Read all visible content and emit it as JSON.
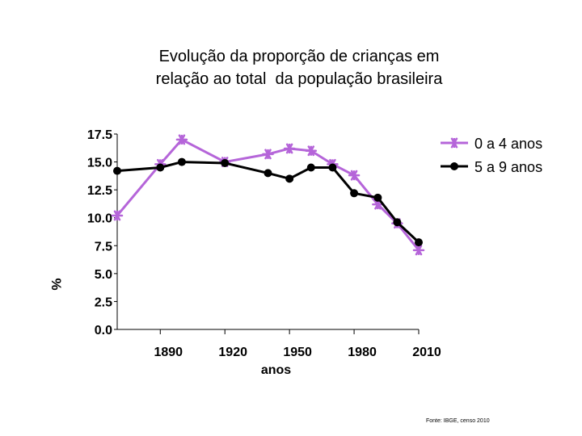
{
  "title_line1": "Evolução da proporção de crianças em",
  "title_line2": "relação ao total  da população brasileira",
  "source": "Fonte: IBGE, censo 2010",
  "chart_data": {
    "type": "line",
    "title": "Evolução da proporção de crianças em relação ao total  da população brasileira",
    "xlabel": "anos",
    "ylabel": "%",
    "ylim": [
      0,
      17.5
    ],
    "yticks": [
      0,
      2.5,
      5,
      7.5,
      10,
      12.5,
      15,
      17.5
    ],
    "ytick_labels": [
      "0.0",
      "2.5",
      "5.0",
      "7.5",
      "10.0",
      "12.5",
      "15.0",
      "17.5"
    ],
    "xlim": [
      1870,
      2010
    ],
    "xticks": [
      1890,
      1920,
      1950,
      1980,
      2010
    ],
    "xtick_labels": [
      "1890",
      "1920",
      "1950",
      "1980",
      "2010"
    ],
    "legend_position": "top-right",
    "series": [
      {
        "name": "0 a 4 anos",
        "color": "#b565d9",
        "marker": "asterisk",
        "x": [
          1870,
          1890,
          1900,
          1920,
          1940,
          1950,
          1960,
          1970,
          1980,
          1991,
          2000,
          2010
        ],
        "y": [
          10.2,
          14.8,
          17.0,
          15.0,
          15.7,
          16.2,
          16.0,
          14.8,
          13.8,
          11.2,
          9.5,
          7.1
        ]
      },
      {
        "name": "5 a 9 anos",
        "color": "#000000",
        "marker": "circle",
        "x": [
          1870,
          1890,
          1900,
          1920,
          1940,
          1950,
          1960,
          1970,
          1980,
          1991,
          2000,
          2010
        ],
        "y": [
          14.2,
          14.5,
          15.0,
          14.9,
          14.0,
          13.5,
          14.5,
          14.5,
          12.2,
          11.8,
          9.6,
          7.8
        ]
      }
    ]
  }
}
